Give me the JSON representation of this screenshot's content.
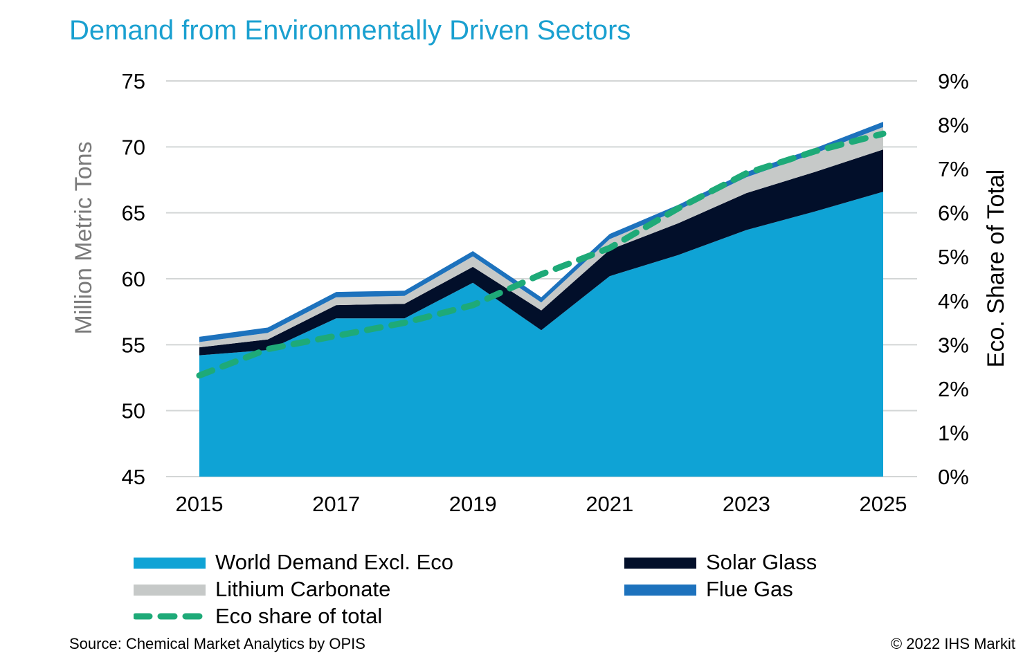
{
  "chart_data": {
    "type": "area",
    "title": "Demand from Environmentally Driven Sectors",
    "ylabel": "Million Metric Tons",
    "y2label": "Eco. Share of Total",
    "x": [
      2015,
      2016,
      2017,
      2018,
      2019,
      2020,
      2021,
      2022,
      2023,
      2024,
      2025
    ],
    "x_tick_labels": [
      "2015",
      "2017",
      "2019",
      "2021",
      "2023",
      "2025"
    ],
    "y_tick_labels": [
      "45",
      "50",
      "55",
      "60",
      "65",
      "70",
      "75"
    ],
    "y2_tick_labels": [
      "0%",
      "1%",
      "2%",
      "3%",
      "4%",
      "5%",
      "6%",
      "7%",
      "8%",
      "9%"
    ],
    "ylim": [
      45,
      75
    ],
    "y2lim": [
      0,
      9
    ],
    "series": [
      {
        "name": "World Demand Excl. Eco",
        "kind": "stacked-area",
        "color": "#0fa3d5",
        "values": [
          54.2,
          54.6,
          57.0,
          57.0,
          59.7,
          56.1,
          60.2,
          61.8,
          63.7,
          65.1,
          66.6
        ]
      },
      {
        "name": "Solar Glass",
        "kind": "stacked-area",
        "color": "#020f2a",
        "values": [
          0.6,
          0.8,
          1.0,
          1.1,
          1.2,
          1.5,
          2.0,
          2.4,
          2.8,
          3.0,
          3.2
        ]
      },
      {
        "name": "Lithium Carbonate",
        "kind": "stacked-area",
        "color": "#c6c9c8",
        "values": [
          0.4,
          0.5,
          0.6,
          0.6,
          0.8,
          0.6,
          0.8,
          1.0,
          1.2,
          1.4,
          1.7
        ]
      },
      {
        "name": "Flue Gas",
        "kind": "stacked-area",
        "color": "#1d72bd",
        "values": [
          0.4,
          0.4,
          0.4,
          0.4,
          0.4,
          0.4,
          0.4,
          0.4,
          0.4,
          0.4,
          0.4
        ]
      },
      {
        "name": "Eco share of total",
        "kind": "line",
        "axis": "right",
        "color": "#1eaa78",
        "values": [
          2.3,
          2.9,
          3.2,
          3.5,
          3.9,
          4.6,
          5.2,
          6.1,
          6.9,
          7.4,
          7.8
        ]
      }
    ],
    "grid": true,
    "legend_position": "bottom"
  },
  "footer": {
    "source": "Source: Chemical Market Analytics by OPIS",
    "copyright": "© 2022 IHS Markit"
  }
}
